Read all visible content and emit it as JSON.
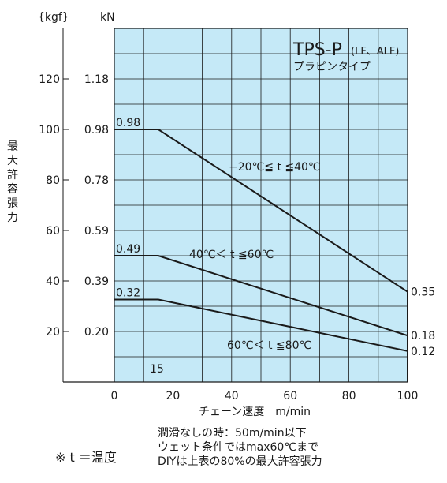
{
  "chart_data": {
    "type": "line",
    "title": "TPS-P",
    "title_suffix": "(LF、ALF)",
    "subtitle": "プラピンタイプ",
    "xlabel": "チェーン速度　m/min",
    "ylabel": "最大許容張力",
    "y_unit_left": "{kgf}",
    "y_unit_right": "kN",
    "xlim": [
      0,
      100
    ],
    "ylim_kgf": [
      0,
      140
    ],
    "grid": true,
    "background_color": "#c5e9f7",
    "line_color": "#1a1a1a",
    "x_ticks": [
      0,
      20,
      40,
      60,
      80,
      100
    ],
    "y_ticks": [
      {
        "kgf": "120",
        "kn": "1.18",
        "value": 120
      },
      {
        "kgf": "100",
        "kn": "0.98",
        "value": 100
      },
      {
        "kgf": "80",
        "kn": "0.78",
        "value": 80
      },
      {
        "kgf": "60",
        "kn": "0.59",
        "value": 60
      },
      {
        "kgf": "40",
        "kn": "0.39",
        "value": 40
      },
      {
        "kgf": "20",
        "kn": "0.20",
        "value": 20
      }
    ],
    "series": [
      {
        "name": "−20℃≦ t ≦40℃",
        "x": [
          0,
          15,
          100
        ],
        "y": [
          0.98,
          0.98,
          0.35
        ],
        "start_label": "0.98",
        "end_label": "0.35"
      },
      {
        "name": "40℃＜ t ≦60℃",
        "x": [
          0,
          15,
          100
        ],
        "y": [
          0.49,
          0.49,
          0.18
        ],
        "start_label": "0.49",
        "end_label": "0.18"
      },
      {
        "name": "60℃＜ t ≦80℃",
        "x": [
          0,
          15,
          100
        ],
        "y": [
          0.32,
          0.32,
          0.12
        ],
        "start_label": "0.32",
        "end_label": "0.12"
      }
    ],
    "annotations": [
      "15"
    ]
  },
  "notes": {
    "line1": "潤滑なしの時：50m/min以下",
    "line2": "ウェット条件ではmax60℃まで",
    "line3": "DIYは上表の80%の最大許容張力",
    "temp_note": "※ t ＝温度"
  }
}
